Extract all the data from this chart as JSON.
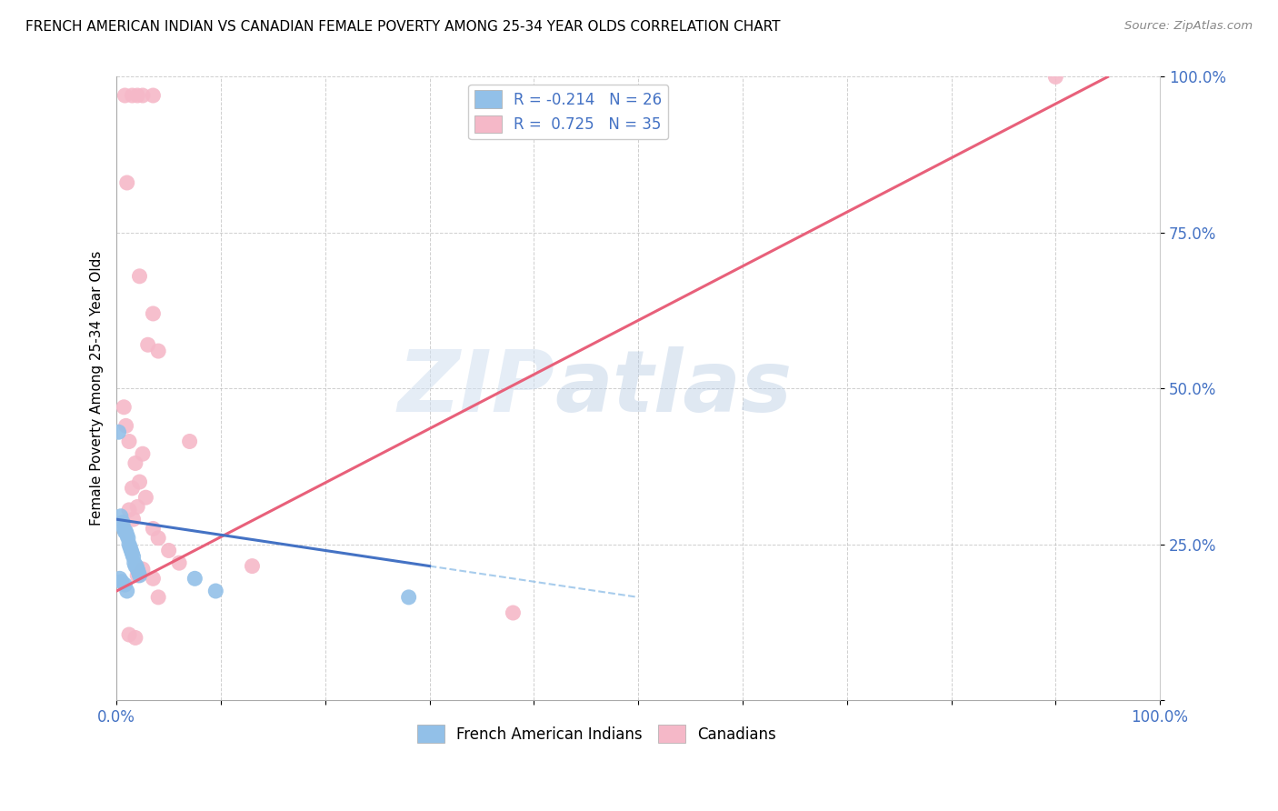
{
  "title": "FRENCH AMERICAN INDIAN VS CANADIAN FEMALE POVERTY AMONG 25-34 YEAR OLDS CORRELATION CHART",
  "source": "Source: ZipAtlas.com",
  "ylabel": "Female Poverty Among 25-34 Year Olds",
  "xlim": [
    0,
    1.0
  ],
  "ylim": [
    0,
    1.0
  ],
  "xticks": [
    0.0,
    0.1,
    0.2,
    0.3,
    0.4,
    0.5,
    0.6,
    0.7,
    0.8,
    0.9,
    1.0
  ],
  "yticks": [
    0.0,
    0.25,
    0.5,
    0.75,
    1.0
  ],
  "xticklabels_show": {
    "0.0": "0.0%",
    "1.0": "100.0%"
  },
  "yticklabels": [
    "",
    "25.0%",
    "50.0%",
    "75.0%",
    "100.0%"
  ],
  "watermark_zip": "ZIP",
  "watermark_atlas": "atlas",
  "legend_r_blue": "-0.214",
  "legend_n_blue": "26",
  "legend_r_pink": "0.725",
  "legend_n_pink": "35",
  "blue_color": "#92c0e8",
  "pink_color": "#f5b8c8",
  "blue_line_color": "#4472c4",
  "pink_line_color": "#e8607a",
  "blue_scatter": [
    [
      0.004,
      0.295
    ],
    [
      0.006,
      0.285
    ],
    [
      0.007,
      0.275
    ],
    [
      0.008,
      0.27
    ],
    [
      0.009,
      0.27
    ],
    [
      0.01,
      0.265
    ],
    [
      0.011,
      0.26
    ],
    [
      0.012,
      0.25
    ],
    [
      0.013,
      0.245
    ],
    [
      0.014,
      0.24
    ],
    [
      0.015,
      0.235
    ],
    [
      0.016,
      0.23
    ],
    [
      0.017,
      0.22
    ],
    [
      0.018,
      0.215
    ],
    [
      0.019,
      0.215
    ],
    [
      0.02,
      0.21
    ],
    [
      0.021,
      0.205
    ],
    [
      0.022,
      0.2
    ],
    [
      0.003,
      0.195
    ],
    [
      0.005,
      0.19
    ],
    [
      0.008,
      0.185
    ],
    [
      0.01,
      0.175
    ],
    [
      0.075,
      0.195
    ],
    [
      0.002,
      0.43
    ],
    [
      0.095,
      0.175
    ],
    [
      0.28,
      0.165
    ]
  ],
  "pink_scatter": [
    [
      0.008,
      0.97
    ],
    [
      0.015,
      0.97
    ],
    [
      0.02,
      0.97
    ],
    [
      0.025,
      0.97
    ],
    [
      0.035,
      0.97
    ],
    [
      0.9,
      1.0
    ],
    [
      0.01,
      0.83
    ],
    [
      0.022,
      0.68
    ],
    [
      0.035,
      0.62
    ],
    [
      0.03,
      0.57
    ],
    [
      0.04,
      0.56
    ],
    [
      0.007,
      0.47
    ],
    [
      0.009,
      0.44
    ],
    [
      0.012,
      0.415
    ],
    [
      0.07,
      0.415
    ],
    [
      0.025,
      0.395
    ],
    [
      0.018,
      0.38
    ],
    [
      0.022,
      0.35
    ],
    [
      0.015,
      0.34
    ],
    [
      0.028,
      0.325
    ],
    [
      0.02,
      0.31
    ],
    [
      0.012,
      0.305
    ],
    [
      0.016,
      0.29
    ],
    [
      0.035,
      0.275
    ],
    [
      0.04,
      0.26
    ],
    [
      0.05,
      0.24
    ],
    [
      0.06,
      0.22
    ],
    [
      0.13,
      0.215
    ],
    [
      0.025,
      0.21
    ],
    [
      0.02,
      0.2
    ],
    [
      0.035,
      0.195
    ],
    [
      0.04,
      0.165
    ],
    [
      0.38,
      0.14
    ],
    [
      0.012,
      0.105
    ],
    [
      0.018,
      0.1
    ]
  ],
  "blue_trendline_solid": [
    [
      0.0,
      0.29
    ],
    [
      0.3,
      0.215
    ]
  ],
  "blue_trendline_dashed": [
    [
      0.3,
      0.215
    ],
    [
      0.5,
      0.165
    ]
  ],
  "pink_trendline": [
    [
      0.0,
      0.175
    ],
    [
      0.95,
      1.0
    ]
  ]
}
